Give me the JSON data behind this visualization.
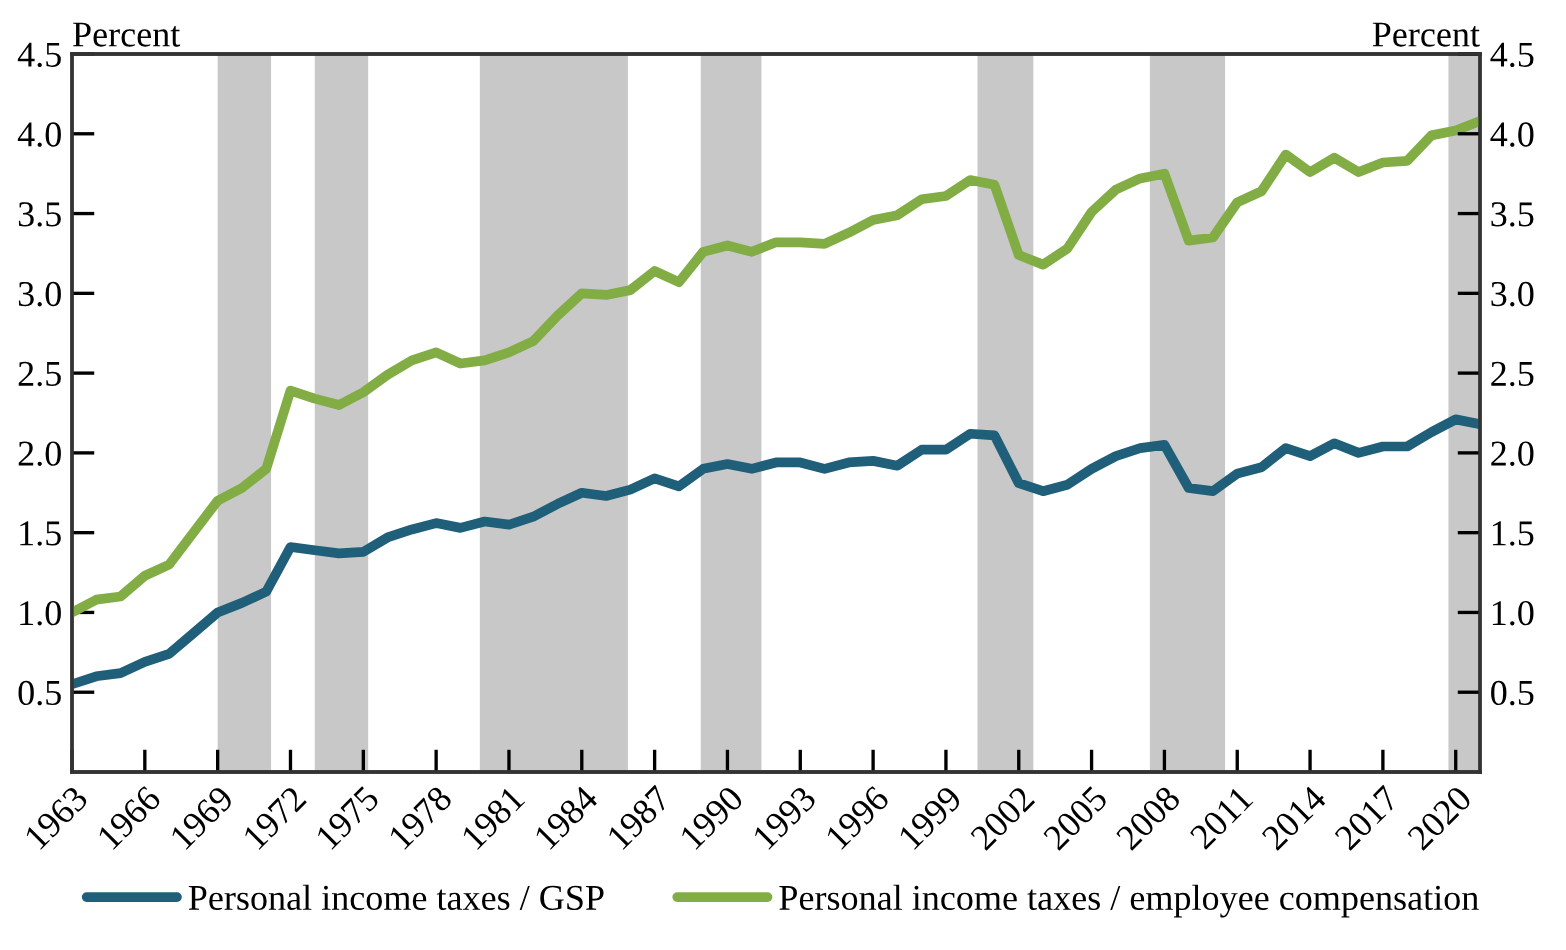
{
  "chart_data": {
    "type": "line",
    "x": [
      1963,
      1964,
      1965,
      1966,
      1967,
      1968,
      1969,
      1970,
      1971,
      1972,
      1973,
      1974,
      1975,
      1976,
      1977,
      1978,
      1979,
      1980,
      1981,
      1982,
      1983,
      1984,
      1985,
      1986,
      1987,
      1988,
      1989,
      1990,
      1991,
      1992,
      1993,
      1994,
      1995,
      1996,
      1997,
      1998,
      1999,
      2000,
      2001,
      2002,
      2003,
      2004,
      2005,
      2006,
      2007,
      2008,
      2009,
      2010,
      2011,
      2012,
      2013,
      2014,
      2015,
      2016,
      2017,
      2018,
      2019,
      2020,
      2021
    ],
    "series": [
      {
        "name": "Personal income taxes / GSP",
        "color": "#1f5f7a",
        "values": [
          0.55,
          0.6,
          0.62,
          0.69,
          0.74,
          0.87,
          1.0,
          1.06,
          1.13,
          1.41,
          1.39,
          1.37,
          1.38,
          1.47,
          1.52,
          1.56,
          1.53,
          1.57,
          1.55,
          1.6,
          1.68,
          1.75,
          1.73,
          1.77,
          1.84,
          1.79,
          1.9,
          1.93,
          1.9,
          1.94,
          1.94,
          1.9,
          1.94,
          1.95,
          1.92,
          2.02,
          2.02,
          2.12,
          2.11,
          1.81,
          1.76,
          1.8,
          1.9,
          1.98,
          2.03,
          2.05,
          1.78,
          1.76,
          1.87,
          1.91,
          2.03,
          1.98,
          2.06,
          2.0,
          2.04,
          2.04,
          2.13,
          2.21,
          2.18
        ]
      },
      {
        "name": "Personal income taxes / employee compensation",
        "color": "#82ad45",
        "values": [
          1.0,
          1.08,
          1.1,
          1.23,
          1.3,
          1.5,
          1.7,
          1.78,
          1.9,
          2.39,
          2.34,
          2.3,
          2.38,
          2.49,
          2.58,
          2.63,
          2.56,
          2.58,
          2.63,
          2.7,
          2.86,
          3.0,
          2.99,
          3.02,
          3.14,
          3.07,
          3.26,
          3.3,
          3.26,
          3.32,
          3.32,
          3.31,
          3.38,
          3.46,
          3.49,
          3.59,
          3.61,
          3.71,
          3.68,
          3.24,
          3.18,
          3.28,
          3.51,
          3.65,
          3.72,
          3.75,
          3.33,
          3.35,
          3.57,
          3.64,
          3.87,
          3.76,
          3.85,
          3.76,
          3.82,
          3.83,
          3.99,
          4.02,
          4.08
        ]
      }
    ],
    "ylabel": "Percent",
    "y2label": "Percent",
    "xlim": [
      1963,
      2021
    ],
    "xticks": [
      1963,
      1966,
      1969,
      1972,
      1975,
      1978,
      1981,
      1984,
      1987,
      1990,
      1993,
      1996,
      1999,
      2002,
      2005,
      2008,
      2011,
      2014,
      2017,
      2020
    ],
    "ylim": [
      0,
      4.5
    ],
    "yticks": [
      0.5,
      {
        "value": 1,
        "label": "1.0"
      },
      1.5,
      {
        "value": 2,
        "label": "2.0"
      },
      2.5,
      {
        "value": 3,
        "label": "3.0"
      },
      3.5,
      {
        "value": 4,
        "label": "4.0"
      },
      4.5
    ],
    "y2lim": [
      0,
      4.5
    ],
    "y2ticks": [
      0.5,
      {
        "value": 1,
        "label": "1.0"
      },
      1.5,
      {
        "value": 2,
        "label": "2.0"
      },
      2.5,
      {
        "value": 3,
        "label": "3.0"
      },
      3.5,
      {
        "value": 4,
        "label": "4.0"
      },
      4.5
    ],
    "bands": [
      {
        "axis": "x",
        "from": 1969.0,
        "to": 1971.2,
        "color": "#c8c8c8"
      },
      {
        "axis": "x",
        "from": 1973.0,
        "to": 1975.2,
        "color": "#c8c8c8"
      },
      {
        "axis": "x",
        "from": 1979.8,
        "to": 1985.9,
        "color": "#c8c8c8"
      },
      {
        "axis": "x",
        "from": 1988.9,
        "to": 1991.4,
        "color": "#c8c8c8"
      },
      {
        "axis": "x",
        "from": 2000.3,
        "to": 2002.6,
        "color": "#c8c8c8"
      },
      {
        "axis": "x",
        "from": 2007.4,
        "to": 2010.5,
        "color": "#c8c8c8"
      },
      {
        "axis": "x",
        "from": 2019.7,
        "to": 2021,
        "color": "#c8c8c8"
      }
    ],
    "grid": false,
    "legend": "bottom",
    "marker": "none",
    "line_style": "solid"
  }
}
